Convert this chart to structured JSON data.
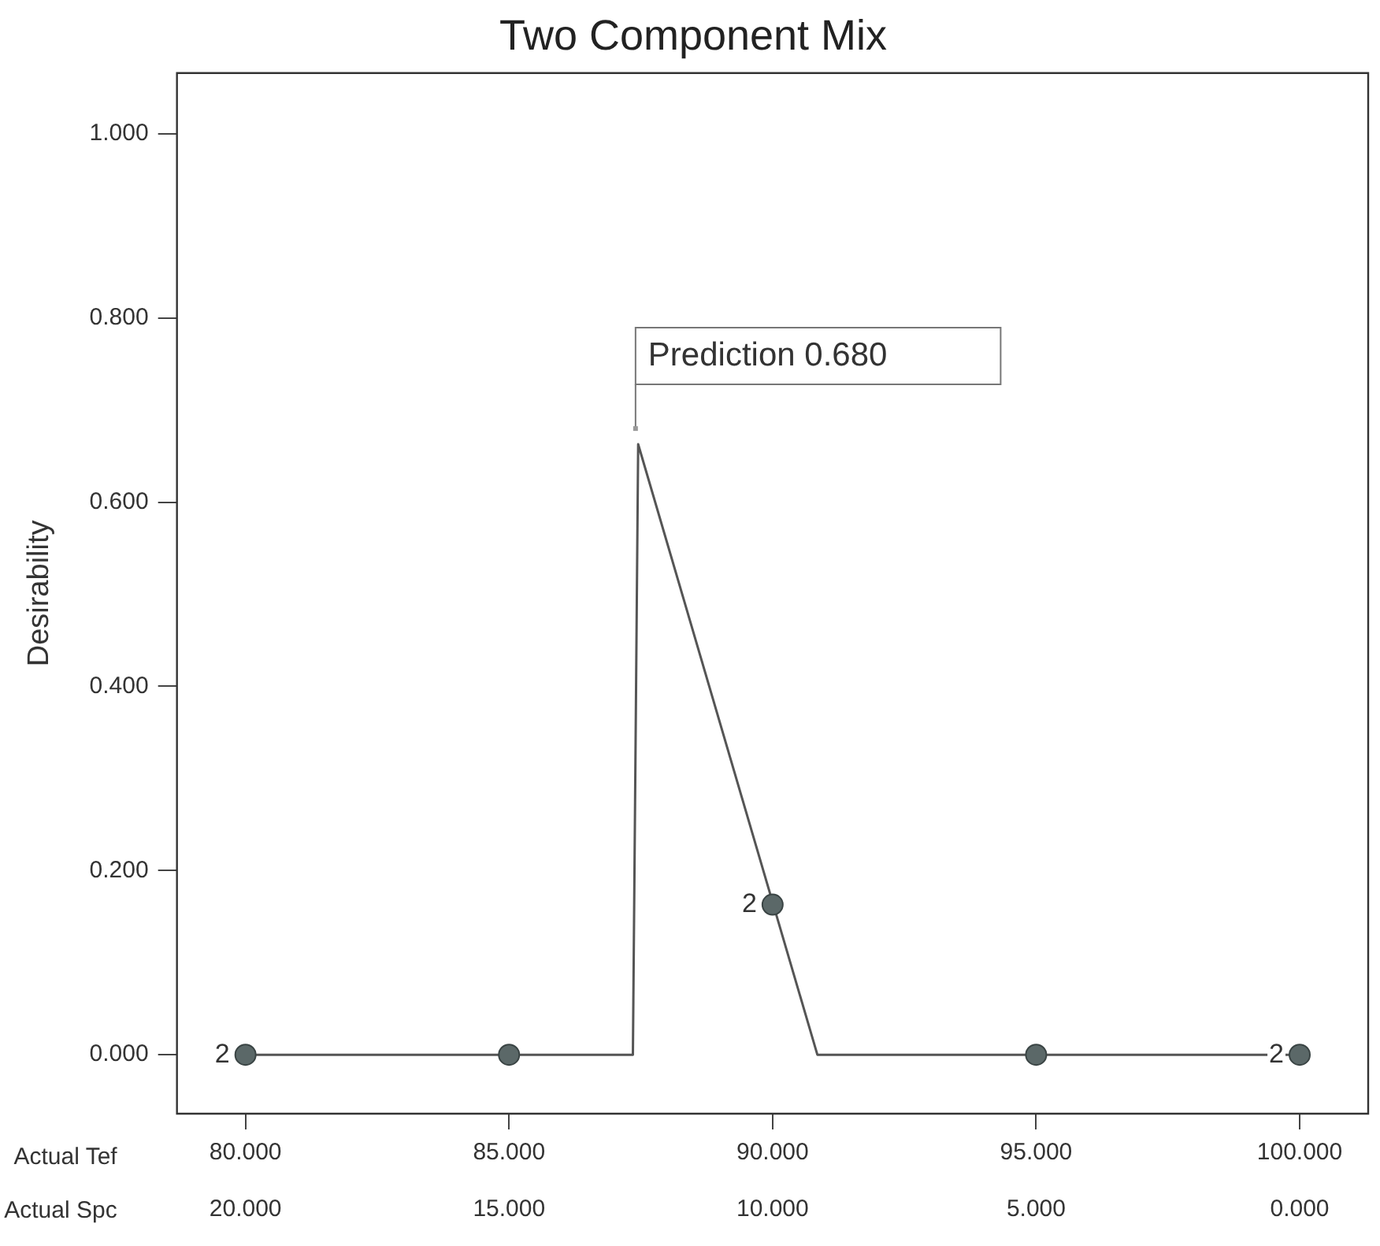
{
  "chart_data": {
    "type": "line",
    "title": "Two Component Mix",
    "ylabel": "Desirability",
    "xlabel": "Actual Tef",
    "x2label": "Actual Spc",
    "xlim": [
      78.7,
      101.3
    ],
    "xticks": [
      {
        "value": 80,
        "label": "80.000"
      },
      {
        "value": 85,
        "label": "85.000"
      },
      {
        "value": 90,
        "label": "90.000"
      },
      {
        "value": 95,
        "label": "95.000"
      },
      {
        "value": 100,
        "label": "100.000"
      }
    ],
    "x2lim": [
      21.3,
      -1.3
    ],
    "x2ticks": [
      {
        "value": 20,
        "label": "20.000"
      },
      {
        "value": 15,
        "label": "15.000"
      },
      {
        "value": 10,
        "label": "10.000"
      },
      {
        "value": 5,
        "label": "5.000"
      },
      {
        "value": 0,
        "label": "0.000"
      }
    ],
    "ylim": [
      -0.064,
      1.066
    ],
    "yticks": [
      {
        "value": 0,
        "label": "0.000"
      },
      {
        "value": 0.2,
        "label": "0.200"
      },
      {
        "value": 0.4,
        "label": "0.400"
      },
      {
        "value": 0.6,
        "label": "0.600"
      },
      {
        "value": 0.8,
        "label": "0.800"
      },
      {
        "value": 1,
        "label": "1.000"
      }
    ],
    "series": [
      {
        "color": "#555555",
        "marker": "none",
        "x": [
          80,
          87.35,
          87.45,
          90.85,
          100
        ],
        "values": [
          0,
          0,
          0.663,
          0,
          0
        ]
      },
      {
        "type": "scatter",
        "color": "#5b6868",
        "marker": "circle",
        "x": [
          80,
          85,
          90,
          95,
          100
        ],
        "values": [
          0,
          0,
          0.163,
          0,
          0
        ]
      }
    ],
    "annotations": [
      {
        "text": "Prediction 0.680",
        "x": 87.4,
        "y": 0.68
      },
      {
        "text": "2",
        "x": 80,
        "y": 0
      },
      {
        "text": "2",
        "x": 90,
        "y": 0.163
      },
      {
        "text": "2",
        "x": 100,
        "y": 0
      }
    ],
    "grid": false,
    "legend": false
  }
}
